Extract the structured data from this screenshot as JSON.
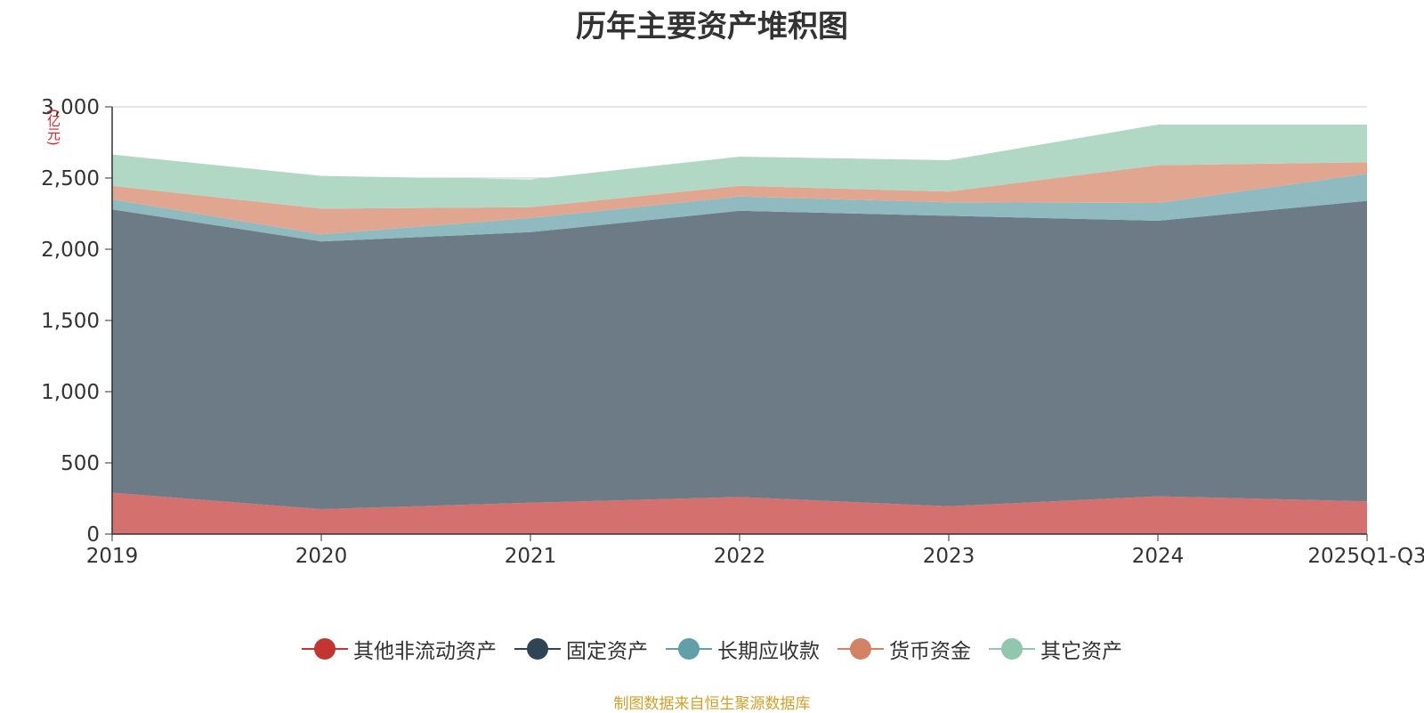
{
  "chart_data": {
    "type": "area",
    "stacked": true,
    "title": "历年主要资产堆积图",
    "ylabel": "(亿元)",
    "xlabel": "",
    "categories": [
      "2019",
      "2020",
      "2021",
      "2022",
      "2023",
      "2024",
      "2025Q1-Q3"
    ],
    "ylim": [
      0,
      3000
    ],
    "yticks": [
      0,
      500,
      1000,
      1500,
      2000,
      2500,
      3000
    ],
    "ytick_labels": [
      "0",
      "500",
      "1,000",
      "1,500",
      "2,000",
      "2,500",
      "3,000"
    ],
    "grid": true,
    "legend_position": "bottom",
    "series": [
      {
        "name": "其他非流动资产",
        "color": "#c23531",
        "fill": "#d4706e",
        "values": [
          290,
          175,
          220,
          260,
          195,
          265,
          230
        ]
      },
      {
        "name": "固定资产",
        "color": "#2f4554",
        "fill": "#6d7b86",
        "values": [
          1990,
          1880,
          1900,
          2010,
          2040,
          1935,
          2110
        ]
      },
      {
        "name": "长期应收款",
        "color": "#61a0a8",
        "fill": "#8fbbc0",
        "values": [
          70,
          50,
          100,
          100,
          95,
          125,
          190
        ]
      },
      {
        "name": "货币资金",
        "color": "#d48265",
        "fill": "#e0a690",
        "values": [
          95,
          180,
          75,
          75,
          75,
          265,
          80
        ]
      },
      {
        "name": "其它资产",
        "color": "#91c7ae",
        "fill": "#b1d8c5",
        "values": [
          220,
          230,
          195,
          205,
          220,
          285,
          265
        ]
      }
    ]
  },
  "source_note": "制图数据来自恒生聚源数据库"
}
